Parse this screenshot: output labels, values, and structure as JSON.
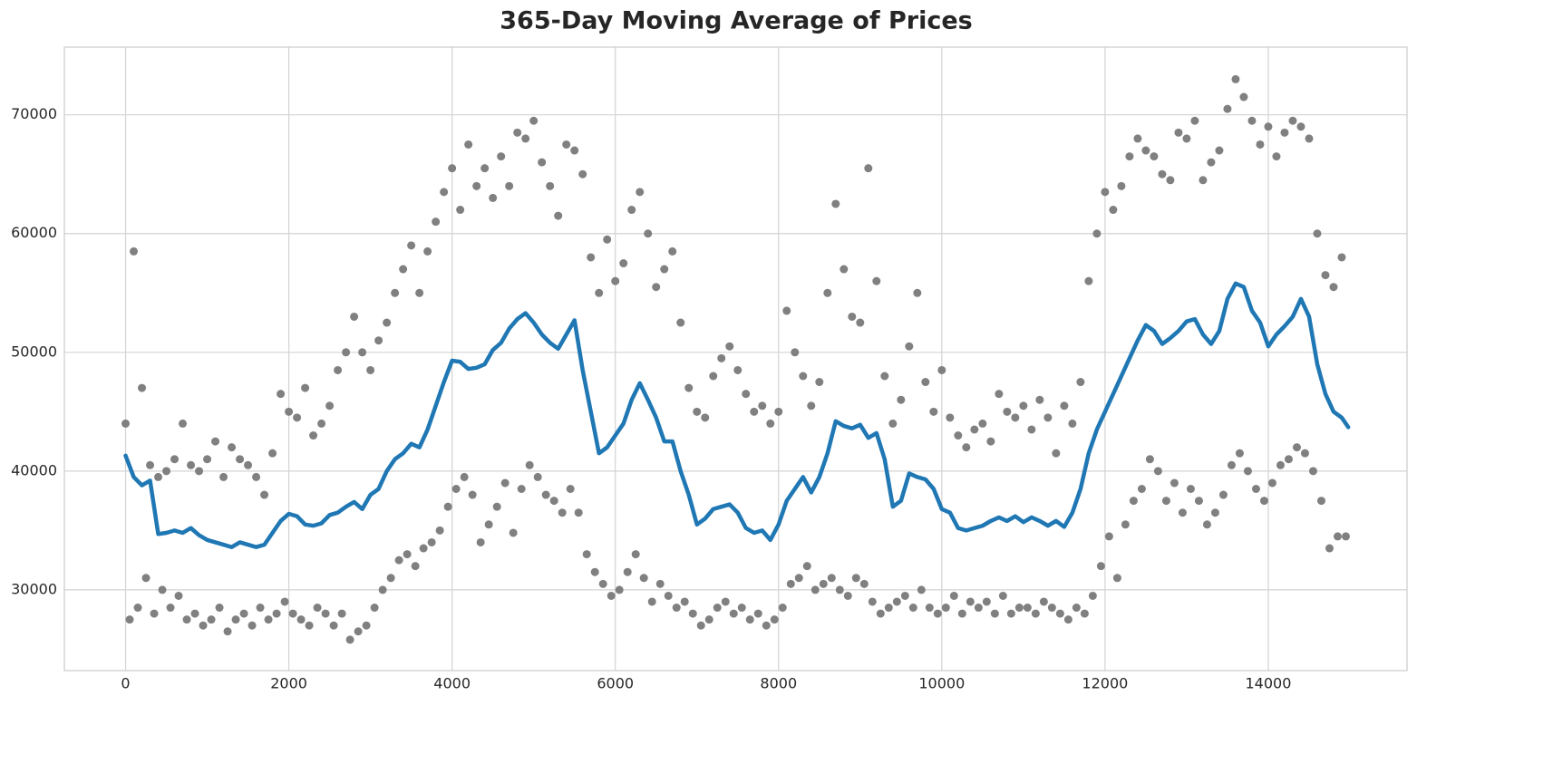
{
  "chart_data": {
    "type": "scatter",
    "title": "365-Day Moving Average of Prices",
    "xlim": [
      -750,
      15700
    ],
    "ylim": [
      23200,
      75700
    ],
    "xticks": [
      0,
      2000,
      4000,
      6000,
      8000,
      10000,
      12000,
      14000
    ],
    "yticks": [
      30000,
      40000,
      50000,
      60000,
      70000
    ],
    "grid": true,
    "series": [
      {
        "kind": "scatter",
        "color": "#808080",
        "x": [
          0,
          50,
          100,
          150,
          200,
          250,
          300,
          350,
          400,
          450,
          500,
          550,
          600,
          650,
          700,
          750,
          800,
          850,
          900,
          950,
          1000,
          1050,
          1100,
          1150,
          1200,
          1250,
          1300,
          1350,
          1400,
          1450,
          1500,
          1550,
          1600,
          1650,
          1700,
          1750,
          1800,
          1850,
          1900,
          1950,
          2000,
          2050,
          2100,
          2150,
          2200,
          2250,
          2300,
          2350,
          2400,
          2450,
          2500,
          2550,
          2600,
          2650,
          2700,
          2750,
          2800,
          2850,
          2900,
          2950,
          3000,
          3050,
          3100,
          3150,
          3200,
          3250,
          3300,
          3350,
          3400,
          3450,
          3500,
          3550,
          3600,
          3650,
          3700,
          3750,
          3800,
          3850,
          3900,
          3950,
          4000,
          4050,
          4100,
          4150,
          4200,
          4250,
          4300,
          4350,
          4400,
          4450,
          4500,
          4550,
          4600,
          4650,
          4700,
          4750,
          4800,
          4850,
          4900,
          4950,
          5000,
          5050,
          5100,
          5150,
          5200,
          5250,
          5300,
          5350,
          5400,
          5450,
          5500,
          5550,
          5600,
          5650,
          5700,
          5750,
          5800,
          5850,
          5900,
          5950,
          6000,
          6050,
          6100,
          6150,
          6200,
          6250,
          6300,
          6350,
          6400,
          6450,
          6500,
          6550,
          6600,
          6650,
          6700,
          6750,
          6800,
          6850,
          6900,
          6950,
          7000,
          7050,
          7100,
          7150,
          7200,
          7250,
          7300,
          7350,
          7400,
          7450,
          7500,
          7550,
          7600,
          7650,
          7700,
          7750,
          7800,
          7850,
          7900,
          7950,
          8000,
          8050,
          8100,
          8150,
          8200,
          8250,
          8300,
          8350,
          8400,
          8450,
          8500,
          8550,
          8600,
          8650,
          8700,
          8750,
          8800,
          8850,
          8900,
          8950,
          9000,
          9050,
          9100,
          9150,
          9200,
          9250,
          9300,
          9350,
          9400,
          9450,
          9500,
          9550,
          9600,
          9650,
          9700,
          9750,
          9800,
          9850,
          9900,
          9950,
          10000,
          10050,
          10100,
          10150,
          10200,
          10250,
          10300,
          10350,
          10400,
          10450,
          10500,
          10550,
          10600,
          10650,
          10700,
          10750,
          10800,
          10850,
          10900,
          10950,
          11000,
          11050,
          11100,
          11150,
          11200,
          11250,
          11300,
          11350,
          11400,
          11450,
          11500,
          11550,
          11600,
          11650,
          11700,
          11750,
          11800,
          11850,
          11900,
          11950,
          12000,
          12050,
          12100,
          12150,
          12200,
          12250,
          12300,
          12350,
          12400,
          12450,
          12500,
          12550,
          12600,
          12650,
          12700,
          12750,
          12800,
          12850,
          12900,
          12950,
          13000,
          13050,
          13100,
          13150,
          13200,
          13250,
          13300,
          13350,
          13400,
          13450,
          13500,
          13550,
          13600,
          13650,
          13700,
          13750,
          13800,
          13850,
          13900,
          13950,
          14000,
          14050,
          14100,
          14150,
          14200,
          14250,
          14300,
          14350,
          14400,
          14450,
          14500,
          14550,
          14600,
          14650,
          14700,
          14750,
          14800,
          14850,
          14900,
          14950
        ],
        "values": [
          44000,
          27500,
          58500,
          28500,
          47000,
          31000,
          40500,
          28000,
          39500,
          30000,
          40000,
          28500,
          41000,
          29500,
          44000,
          27500,
          40500,
          28000,
          40000,
          27000,
          41000,
          27500,
          42500,
          28500,
          39500,
          26500,
          42000,
          27500,
          41000,
          28000,
          40500,
          27000,
          39500,
          28500,
          38000,
          27500,
          41500,
          28000,
          46500,
          29000,
          45000,
          28000,
          44500,
          27500,
          47000,
          27000,
          43000,
          28500,
          44000,
          28000,
          45500,
          27000,
          48500,
          28000,
          50000,
          25800,
          53000,
          26500,
          50000,
          27000,
          48500,
          28500,
          51000,
          30000,
          52500,
          31000,
          55000,
          32500,
          57000,
          33000,
          59000,
          32000,
          55000,
          33500,
          58500,
          34000,
          61000,
          35000,
          63500,
          37000,
          65500,
          38500,
          62000,
          39500,
          67500,
          38000,
          64000,
          34000,
          65500,
          35500,
          63000,
          37000,
          66500,
          39000,
          64000,
          34800,
          68500,
          38500,
          68000,
          40500,
          69500,
          39500,
          66000,
          38000,
          64000,
          37500,
          61500,
          36500,
          67500,
          38500,
          67000,
          36500,
          65000,
          33000,
          58000,
          31500,
          55000,
          30500,
          59500,
          29500,
          56000,
          30000,
          57500,
          31500,
          62000,
          33000,
          63500,
          31000,
          60000,
          29000,
          55500,
          30500,
          57000,
          29500,
          58500,
          28500,
          52500,
          29000,
          47000,
          28000,
          45000,
          27000,
          44500,
          27500,
          48000,
          28500,
          49500,
          29000,
          50500,
          28000,
          48500,
          28500,
          46500,
          27500,
          45000,
          28000,
          45500,
          27000,
          44000,
          27500,
          45000,
          28500,
          53500,
          30500,
          50000,
          31000,
          48000,
          32000,
          45500,
          30000,
          47500,
          30500,
          55000,
          31000,
          62500,
          30000,
          57000,
          29500,
          53000,
          31000,
          52500,
          30500,
          65500,
          29000,
          56000,
          28000,
          48000,
          28500,
          44000,
          29000,
          46000,
          29500,
          50500,
          28500,
          55000,
          30000,
          47500,
          28500,
          45000,
          28000,
          48500,
          28500,
          44500,
          29500,
          43000,
          28000,
          42000,
          29000,
          43500,
          28500,
          44000,
          29000,
          42500,
          28000,
          46500,
          29500,
          45000,
          28000,
          44500,
          28500,
          45500,
          28500,
          43500,
          28000,
          46000,
          29000,
          44500,
          28500,
          41500,
          28000,
          45500,
          27500,
          44000,
          28500,
          47500,
          28000,
          56000,
          29500,
          60000,
          32000,
          63500,
          34500,
          62000,
          31000,
          64000,
          35500,
          66500,
          37500,
          68000,
          38500,
          67000,
          41000,
          66500,
          40000,
          65000,
          37500,
          64500,
          39000,
          68500,
          36500,
          68000,
          38500,
          69500,
          37500,
          64500,
          35500,
          66000,
          36500,
          67000,
          38000,
          70500,
          40500,
          73000,
          41500,
          71500,
          40000,
          69500,
          38500,
          67500,
          37500,
          69000,
          39000,
          66500,
          40500,
          68500,
          41000,
          69500,
          42000,
          69000,
          41500,
          68000,
          40000,
          60000,
          37500,
          56500,
          33500,
          55500,
          34500,
          58000,
          34500
        ]
      },
      {
        "kind": "line",
        "color": "#1f77b4",
        "x": [
          0,
          100,
          200,
          300,
          400,
          500,
          600,
          700,
          800,
          900,
          1000,
          1100,
          1200,
          1300,
          1400,
          1500,
          1600,
          1700,
          1800,
          1900,
          2000,
          2100,
          2200,
          2300,
          2400,
          2500,
          2600,
          2700,
          2800,
          2900,
          3000,
          3100,
          3200,
          3300,
          3400,
          3500,
          3600,
          3700,
          3800,
          3900,
          4000,
          4100,
          4200,
          4300,
          4400,
          4500,
          4600,
          4700,
          4800,
          4900,
          5000,
          5100,
          5200,
          5300,
          5400,
          5500,
          5600,
          5700,
          5800,
          5900,
          6000,
          6100,
          6200,
          6300,
          6400,
          6500,
          6600,
          6700,
          6800,
          6900,
          7000,
          7100,
          7200,
          7300,
          7400,
          7500,
          7600,
          7700,
          7800,
          7900,
          8000,
          8100,
          8200,
          8300,
          8400,
          8500,
          8600,
          8700,
          8800,
          8900,
          9000,
          9100,
          9200,
          9300,
          9400,
          9500,
          9600,
          9700,
          9800,
          9900,
          10000,
          10100,
          10200,
          10300,
          10400,
          10500,
          10600,
          10700,
          10800,
          10900,
          11000,
          11100,
          11200,
          11300,
          11400,
          11500,
          11600,
          11700,
          11800,
          11900,
          12000,
          12100,
          12200,
          12300,
          12400,
          12500,
          12600,
          12700,
          12800,
          12900,
          13000,
          13100,
          13200,
          13300,
          13400,
          13500,
          13600,
          13700,
          13800,
          13900,
          14000,
          14100,
          14200,
          14300,
          14400,
          14500,
          14600,
          14700,
          14800,
          14900,
          14980
        ],
        "values": [
          41300,
          39500,
          38800,
          39200,
          34700,
          34800,
          35000,
          34800,
          35200,
          34600,
          34200,
          34000,
          33800,
          33600,
          34000,
          33800,
          33600,
          33800,
          34800,
          35800,
          36400,
          36200,
          35500,
          35400,
          35600,
          36300,
          36500,
          37000,
          37400,
          36800,
          38000,
          38500,
          40000,
          41000,
          41500,
          42300,
          42000,
          43500,
          45500,
          47500,
          49300,
          49200,
          48600,
          48700,
          49000,
          50200,
          50800,
          52000,
          52800,
          53300,
          52500,
          51500,
          50800,
          50300,
          51500,
          52700,
          48500,
          45000,
          41500,
          42000,
          43000,
          44000,
          46000,
          47400,
          46000,
          44500,
          42500,
          42500,
          40000,
          38000,
          35500,
          36000,
          36800,
          37000,
          37200,
          36500,
          35200,
          34800,
          35000,
          34200,
          35500,
          37500,
          38500,
          39500,
          38200,
          39500,
          41500,
          44200,
          43800,
          43600,
          43900,
          42800,
          43200,
          41000,
          37000,
          37500,
          39800,
          39500,
          39300,
          38500,
          36800,
          36500,
          35200,
          35000,
          35200,
          35400,
          35800,
          36100,
          35800,
          36200,
          35700,
          36100,
          35800,
          35400,
          35800,
          35300,
          36500,
          38500,
          41500,
          43500,
          45000,
          46500,
          48000,
          49500,
          51000,
          52300,
          51800,
          50700,
          51200,
          51800,
          52600,
          52800,
          51500,
          50700,
          51800,
          54500,
          55800,
          55500,
          53500,
          52500,
          50500,
          51500,
          52200,
          53000,
          54500,
          53000,
          49000,
          46500,
          45000,
          44500,
          43700
        ]
      }
    ]
  }
}
